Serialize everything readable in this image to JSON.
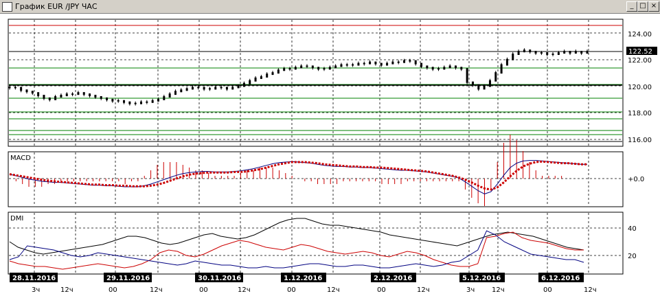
{
  "window": {
    "title": "График EUR /JPY  ЧАС",
    "icon": "chart-window-icon",
    "buttons": {
      "minimize": "_",
      "maximize": "□",
      "close": "×"
    }
  },
  "colors": {
    "price_bars": "#000000",
    "support_lines": "#008000",
    "resistance_line": "#cc0000",
    "macd_line": "#000080",
    "macd_signal": "#cc0000",
    "dmi_adx": "#000000",
    "dmi_plus": "#cc0000",
    "dmi_minus": "#000080"
  },
  "panels": {
    "macd_label": "MACD",
    "dmi_label": "DMI"
  },
  "price_axis": {
    "ticks": [
      "124.00",
      "122.00",
      "120.00",
      "118.00",
      "116.00"
    ],
    "current": "122.52"
  },
  "macd_axis": {
    "ticks": [
      "+0.0"
    ]
  },
  "dmi_axis": {
    "ticks": [
      "40",
      "20"
    ]
  },
  "dates": [
    "28.11.2016",
    "29.11.2016",
    "30.11.2016",
    "1.12.2016",
    "2.12.2016",
    "5.12.2016",
    "6.12.2016"
  ],
  "hour_labels": [
    "3ч",
    "12ч",
    "00",
    "12ч",
    "00",
    "12ч",
    "00",
    "12ч",
    "00",
    "12ч",
    "3ч",
    "12ч",
    "00",
    "12ч"
  ],
  "chart_data": {
    "type": "line",
    "price": [
      119.9,
      119.9,
      119.7,
      119.6,
      119.5,
      119.3,
      119.1,
      119.0,
      119.2,
      119.3,
      119.4,
      119.4,
      119.5,
      119.4,
      119.3,
      119.2,
      119.1,
      119.0,
      118.9,
      118.9,
      118.8,
      118.7,
      118.7,
      118.8,
      118.8,
      118.9,
      119.0,
      119.2,
      119.4,
      119.6,
      119.7,
      119.8,
      119.9,
      119.9,
      119.8,
      119.8,
      119.9,
      119.9,
      119.8,
      119.9,
      120.0,
      120.2,
      120.4,
      120.6,
      120.7,
      120.9,
      121.0,
      121.2,
      121.3,
      121.3,
      121.4,
      121.5,
      121.5,
      121.4,
      121.3,
      121.3,
      121.4,
      121.5,
      121.6,
      121.6,
      121.6,
      121.7,
      121.7,
      121.8,
      121.7,
      121.6,
      121.7,
      121.8,
      121.8,
      121.9,
      121.9,
      121.7,
      121.5,
      121.4,
      121.3,
      121.3,
      121.4,
      121.5,
      121.4,
      121.3,
      120.3,
      120.1,
      119.8,
      120.0,
      120.4,
      121.0,
      121.6,
      122.0,
      122.4,
      122.6,
      122.7,
      122.6,
      122.5,
      122.5,
      122.4,
      122.4,
      122.5,
      122.6,
      122.5,
      122.6,
      122.5,
      122.6
    ],
    "macd": [
      0.08,
      0.05,
      0.02,
      -0.01,
      -0.03,
      -0.05,
      -0.06,
      -0.07,
      -0.07,
      -0.08,
      -0.09,
      -0.1,
      -0.11,
      -0.12,
      -0.12,
      -0.13,
      -0.13,
      -0.14,
      -0.15,
      -0.15,
      -0.15,
      -0.13,
      -0.1,
      -0.06,
      -0.02,
      0.02,
      0.06,
      0.09,
      0.11,
      0.12,
      0.13,
      0.13,
      0.12,
      0.12,
      0.12,
      0.13,
      0.14,
      0.16,
      0.18,
      0.21,
      0.24,
      0.27,
      0.29,
      0.3,
      0.31,
      0.3,
      0.29,
      0.28,
      0.26,
      0.24,
      0.23,
      0.22,
      0.22,
      0.21,
      0.21,
      0.2,
      0.2,
      0.19,
      0.18,
      0.17,
      0.16,
      0.15,
      0.15,
      0.14,
      0.13,
      0.12,
      0.1,
      0.08,
      0.06,
      0.04,
      0.01,
      -0.06,
      -0.14,
      -0.22,
      -0.28,
      -0.24,
      -0.1,
      0.06,
      0.2,
      0.28,
      0.32,
      0.33,
      0.33,
      0.32,
      0.31,
      0.3,
      0.29,
      0.28,
      0.27,
      0.26,
      0.26
    ],
    "macd_signal": [
      0.08,
      0.06,
      0.04,
      0.02,
      0.0,
      -0.02,
      -0.04,
      -0.05,
      -0.06,
      -0.07,
      -0.08,
      -0.09,
      -0.1,
      -0.11,
      -0.11,
      -0.12,
      -0.12,
      -0.13,
      -0.13,
      -0.14,
      -0.14,
      -0.14,
      -0.13,
      -0.11,
      -0.08,
      -0.04,
      0.0,
      0.04,
      0.07,
      0.09,
      0.1,
      0.11,
      0.11,
      0.11,
      0.11,
      0.12,
      0.12,
      0.13,
      0.15,
      0.17,
      0.2,
      0.23,
      0.26,
      0.28,
      0.3,
      0.3,
      0.3,
      0.29,
      0.28,
      0.26,
      0.25,
      0.24,
      0.23,
      0.22,
      0.22,
      0.21,
      0.21,
      0.2,
      0.2,
      0.19,
      0.18,
      0.17,
      0.16,
      0.15,
      0.14,
      0.13,
      0.11,
      0.09,
      0.07,
      0.05,
      0.02,
      -0.02,
      -0.07,
      -0.13,
      -0.18,
      -0.2,
      -0.16,
      -0.07,
      0.04,
      0.14,
      0.22,
      0.27,
      0.3,
      0.31,
      0.3,
      0.29,
      0.28,
      0.28,
      0.27,
      0.26,
      0.26
    ],
    "dmi_adx": [
      30,
      26,
      24,
      22,
      21,
      22,
      23,
      24,
      25,
      26,
      27,
      28,
      30,
      32,
      34,
      34,
      33,
      31,
      29,
      28,
      29,
      31,
      33,
      35,
      36,
      34,
      33,
      32,
      33,
      35,
      38,
      41,
      44,
      46,
      47,
      47,
      45,
      43,
      42,
      42,
      41,
      40,
      39,
      38,
      37,
      35,
      34,
      33,
      32,
      31,
      30,
      29,
      28,
      27,
      29,
      31,
      33,
      35,
      36,
      37,
      36,
      35,
      34,
      32,
      30,
      28,
      26,
      25,
      24
    ],
    "dmi_plus": [
      16,
      14,
      13,
      12,
      12,
      11,
      10,
      11,
      12,
      13,
      14,
      13,
      12,
      11,
      12,
      14,
      17,
      22,
      24,
      23,
      20,
      19,
      21,
      24,
      27,
      29,
      31,
      30,
      28,
      26,
      25,
      24,
      26,
      28,
      27,
      25,
      23,
      22,
      21,
      22,
      23,
      22,
      20,
      19,
      21,
      23,
      22,
      20,
      17,
      15,
      13,
      12,
      12,
      14,
      33,
      34,
      36,
      37,
      33,
      31,
      30,
      29,
      27,
      25,
      24,
      24
    ],
    "dmi_minus": [
      17,
      19,
      27,
      26,
      25,
      24,
      22,
      20,
      19,
      20,
      22,
      21,
      20,
      19,
      18,
      17,
      16,
      15,
      14,
      13,
      14,
      16,
      15,
      14,
      13,
      13,
      12,
      11,
      11,
      12,
      11,
      11,
      12,
      13,
      14,
      14,
      13,
      12,
      12,
      13,
      13,
      12,
      11,
      11,
      12,
      13,
      14,
      13,
      12,
      13,
      15,
      16,
      20,
      24,
      38,
      35,
      30,
      27,
      24,
      21,
      20,
      19,
      18,
      17,
      17,
      15
    ]
  }
}
